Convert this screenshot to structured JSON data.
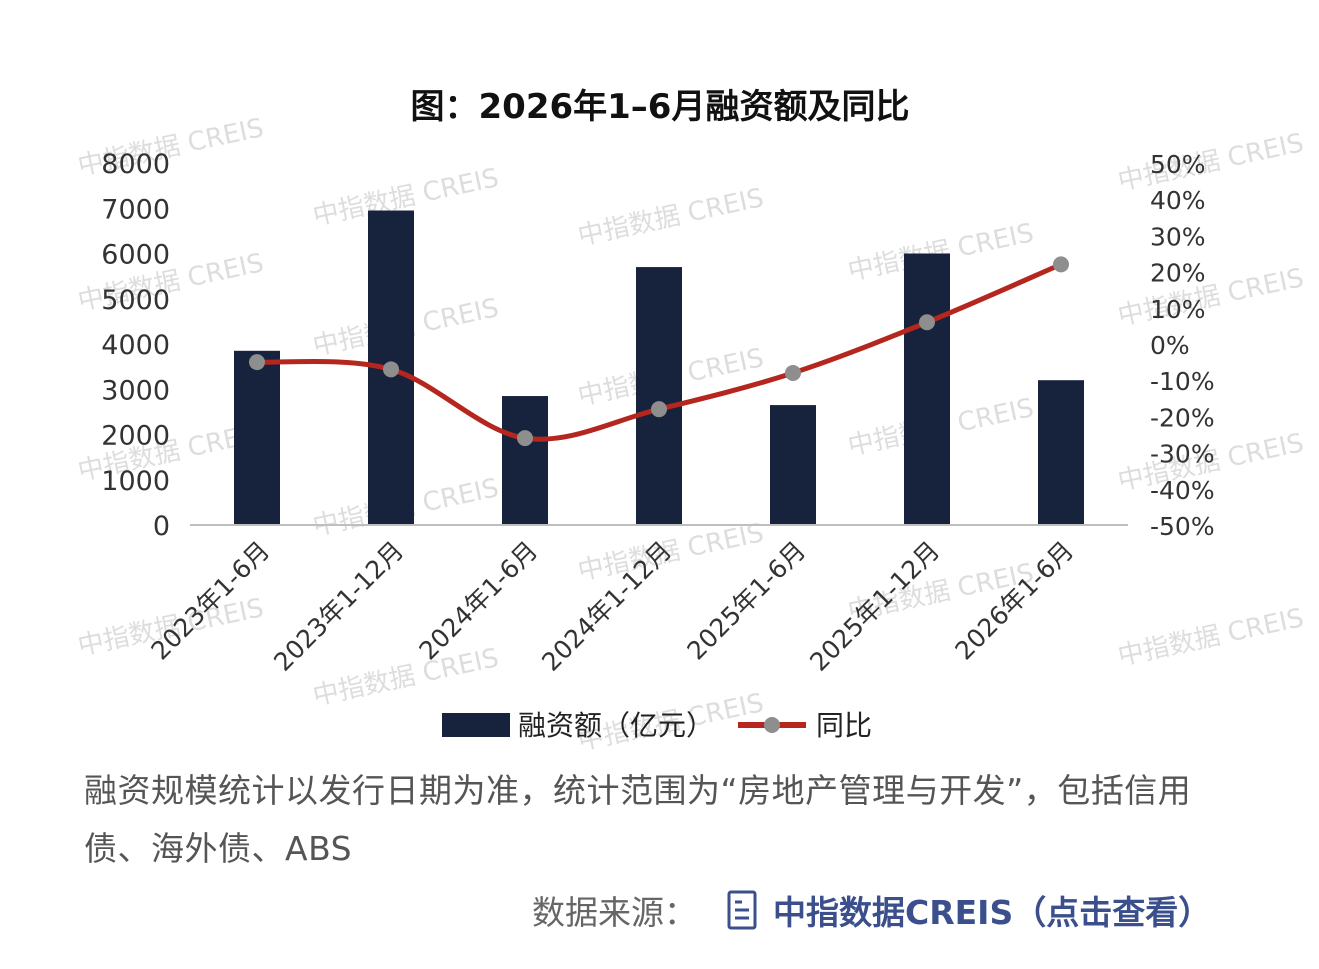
{
  "chart_data": {
    "type": "bar+line",
    "title": "图：2026年1–6月融资额及同比",
    "categories": [
      "2023年1-6月",
      "2023年1-12月",
      "2024年1-6月",
      "2024年1-12月",
      "2025年1-6月",
      "2025年1-12月",
      "2026年1-6月"
    ],
    "series": [
      {
        "name": "融资额（亿元）",
        "type": "bar",
        "axis": "left",
        "values": [
          3850,
          6950,
          2850,
          5700,
          2650,
          6000,
          3200
        ]
      },
      {
        "name": "同比",
        "type": "line",
        "axis": "right",
        "unit": "%",
        "values": [
          -5,
          -7,
          -26,
          -18,
          -8,
          6,
          22
        ]
      }
    ],
    "yleft": {
      "ylim": [
        0,
        8000
      ],
      "ticks": [
        "0",
        "1000",
        "2000",
        "3000",
        "4000",
        "5000",
        "6000",
        "7000",
        "8000"
      ]
    },
    "yright": {
      "ylim": [
        -50,
        50
      ],
      "ticks": [
        "-50%",
        "-40%",
        "-30%",
        "-20%",
        "-10%",
        "0%",
        "10%",
        "20%",
        "30%",
        "40%",
        "50%"
      ]
    },
    "legend": "bottom",
    "grid": false,
    "colors": {
      "bar": "#17223d",
      "line": "#b5271e",
      "marker": "#8e8e8e",
      "axis": "#bfbfbf"
    }
  },
  "watermark": "中指数据 CREIS",
  "caption": "融资规模统计以发行日期为准，统计范围为“房地产管理与开发”，包括信用债、海外债、ABS",
  "source": {
    "label": "数据来源：",
    "icon": "document-icon",
    "link_text": "中指数据CREIS（点击查看）"
  }
}
